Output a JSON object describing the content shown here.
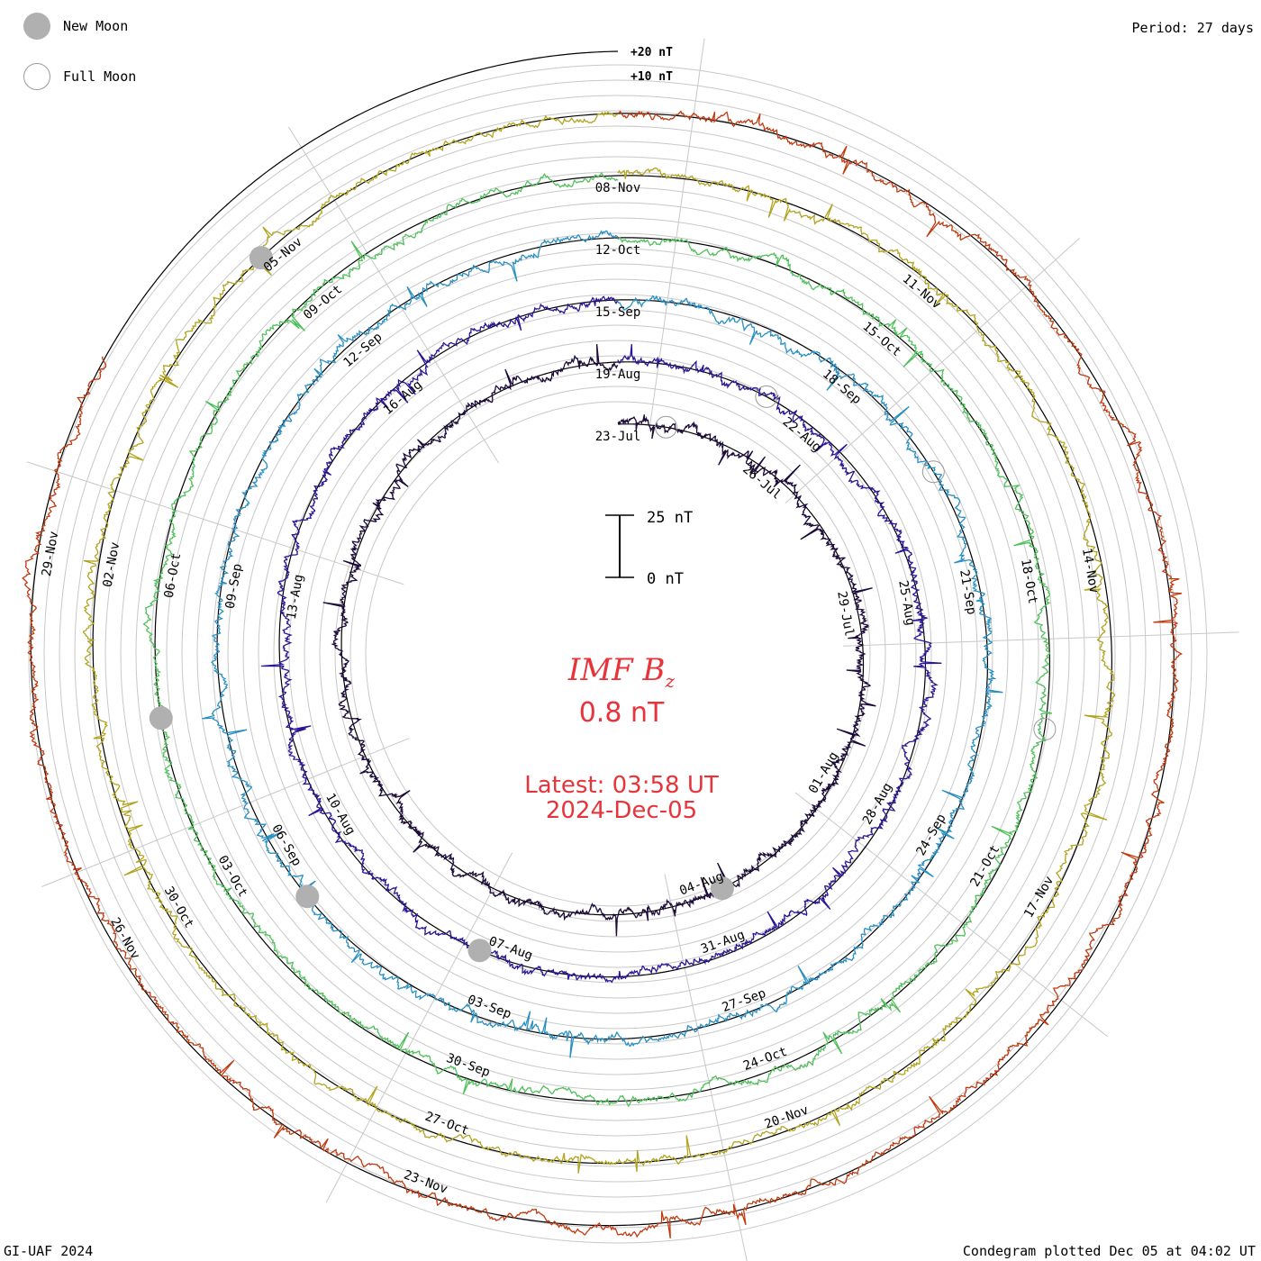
{
  "header": {
    "period_label": "Period: 27 days"
  },
  "legend": {
    "items": [
      {
        "label": "New Moon",
        "icon": "new-moon-icon"
      },
      {
        "label": "Full Moon",
        "icon": "full-moon-icon"
      }
    ]
  },
  "center": {
    "title_main": "IMF B",
    "title_sub": "z",
    "value": "0.8 nT",
    "latest": "Latest: 03:58 UT",
    "date": "2024-Dec-05"
  },
  "footer": {
    "left": "GI-UAF 2024",
    "right": "Condegram plotted Dec 05 at 04:02 UT"
  },
  "chart_data": {
    "type": "condegram",
    "title": "IMF Bz",
    "period_days": 27,
    "scale": {
      "labels": [
        "+20 nT",
        "+10 nT"
      ],
      "bar_labels": [
        "25 nT",
        "0 nT"
      ]
    },
    "colors": {
      "latest_text": "#e8333a",
      "moon_fill": "#b0b0b0"
    },
    "rotations": [
      {
        "color": "#1b0a3a",
        "labels": [
          {
            "text": "23-Jul",
            "angle": 0
          },
          {
            "text": "26-Jul",
            "angle": 40
          },
          {
            "text": "29-Jul",
            "angle": 80
          },
          {
            "text": "01-Aug",
            "angle": 120
          },
          {
            "text": "04-Aug",
            "angle": 160
          }
        ]
      },
      {
        "color": "#2c1495",
        "labels": [
          {
            "text": "07-Aug",
            "angle": 200
          },
          {
            "text": "10-Aug",
            "angle": 240
          },
          {
            "text": "13-Aug",
            "angle": 280
          },
          {
            "text": "16-Aug",
            "angle": 320
          },
          {
            "text": "19-Aug",
            "angle": 0
          },
          {
            "text": "22-Aug",
            "angle": 40
          },
          {
            "text": "25-Aug",
            "angle": 80
          },
          {
            "text": "28-Aug",
            "angle": 120
          },
          {
            "text": "31-Aug",
            "angle": 160
          }
        ]
      },
      {
        "color": "#2a8fc2",
        "labels": [
          {
            "text": "03-Sep",
            "angle": 200
          },
          {
            "text": "06-Sep",
            "angle": 240
          },
          {
            "text": "09-Sep",
            "angle": 280
          },
          {
            "text": "12-Sep",
            "angle": 320
          },
          {
            "text": "15-Sep",
            "angle": 0
          },
          {
            "text": "18-Sep",
            "angle": 40
          },
          {
            "text": "21-Sep",
            "angle": 80
          },
          {
            "text": "24-Sep",
            "angle": 120
          },
          {
            "text": "27-Sep",
            "angle": 160
          }
        ]
      },
      {
        "color": "#4fc05a",
        "labels": [
          {
            "text": "30-Sep",
            "angle": 200
          },
          {
            "text": "03-Oct",
            "angle": 240
          },
          {
            "text": "06-Oct",
            "angle": 280
          },
          {
            "text": "09-Oct",
            "angle": 320
          },
          {
            "text": "12-Oct",
            "angle": 0
          },
          {
            "text": "15-Oct",
            "angle": 40
          },
          {
            "text": "18-Oct",
            "angle": 80
          },
          {
            "text": "21-Oct",
            "angle": 120
          },
          {
            "text": "24-Oct",
            "angle": 160
          }
        ]
      },
      {
        "color": "#b2a41e",
        "labels": [
          {
            "text": "27-Oct",
            "angle": 200
          },
          {
            "text": "30-Oct",
            "angle": 240
          },
          {
            "text": "02-Nov",
            "angle": 280
          },
          {
            "text": "05-Nov",
            "angle": 320
          },
          {
            "text": "08-Nov",
            "angle": 0
          },
          {
            "text": "11-Nov",
            "angle": 40
          },
          {
            "text": "14-Nov",
            "angle": 80
          },
          {
            "text": "17-Nov",
            "angle": 120
          },
          {
            "text": "20-Nov",
            "angle": 160
          }
        ]
      },
      {
        "color": "#c03a10",
        "labels": [
          {
            "text": "23-Nov",
            "angle": 200
          },
          {
            "text": "26-Nov",
            "angle": 240
          },
          {
            "text": "29-Nov",
            "angle": 280
          }
        ]
      }
    ],
    "moons": [
      {
        "type": "full",
        "date_angle": 12
      },
      {
        "type": "new",
        "date_angle": 156
      },
      {
        "type": "new",
        "date_angle": 205
      },
      {
        "type": "full",
        "date_angle": 30
      },
      {
        "type": "new",
        "date_angle": 232
      },
      {
        "type": "full",
        "date_angle": 60
      },
      {
        "type": "new",
        "date_angle": 262
      },
      {
        "type": "full",
        "date_angle": 100
      },
      {
        "type": "new",
        "date_angle": 318
      }
    ]
  }
}
